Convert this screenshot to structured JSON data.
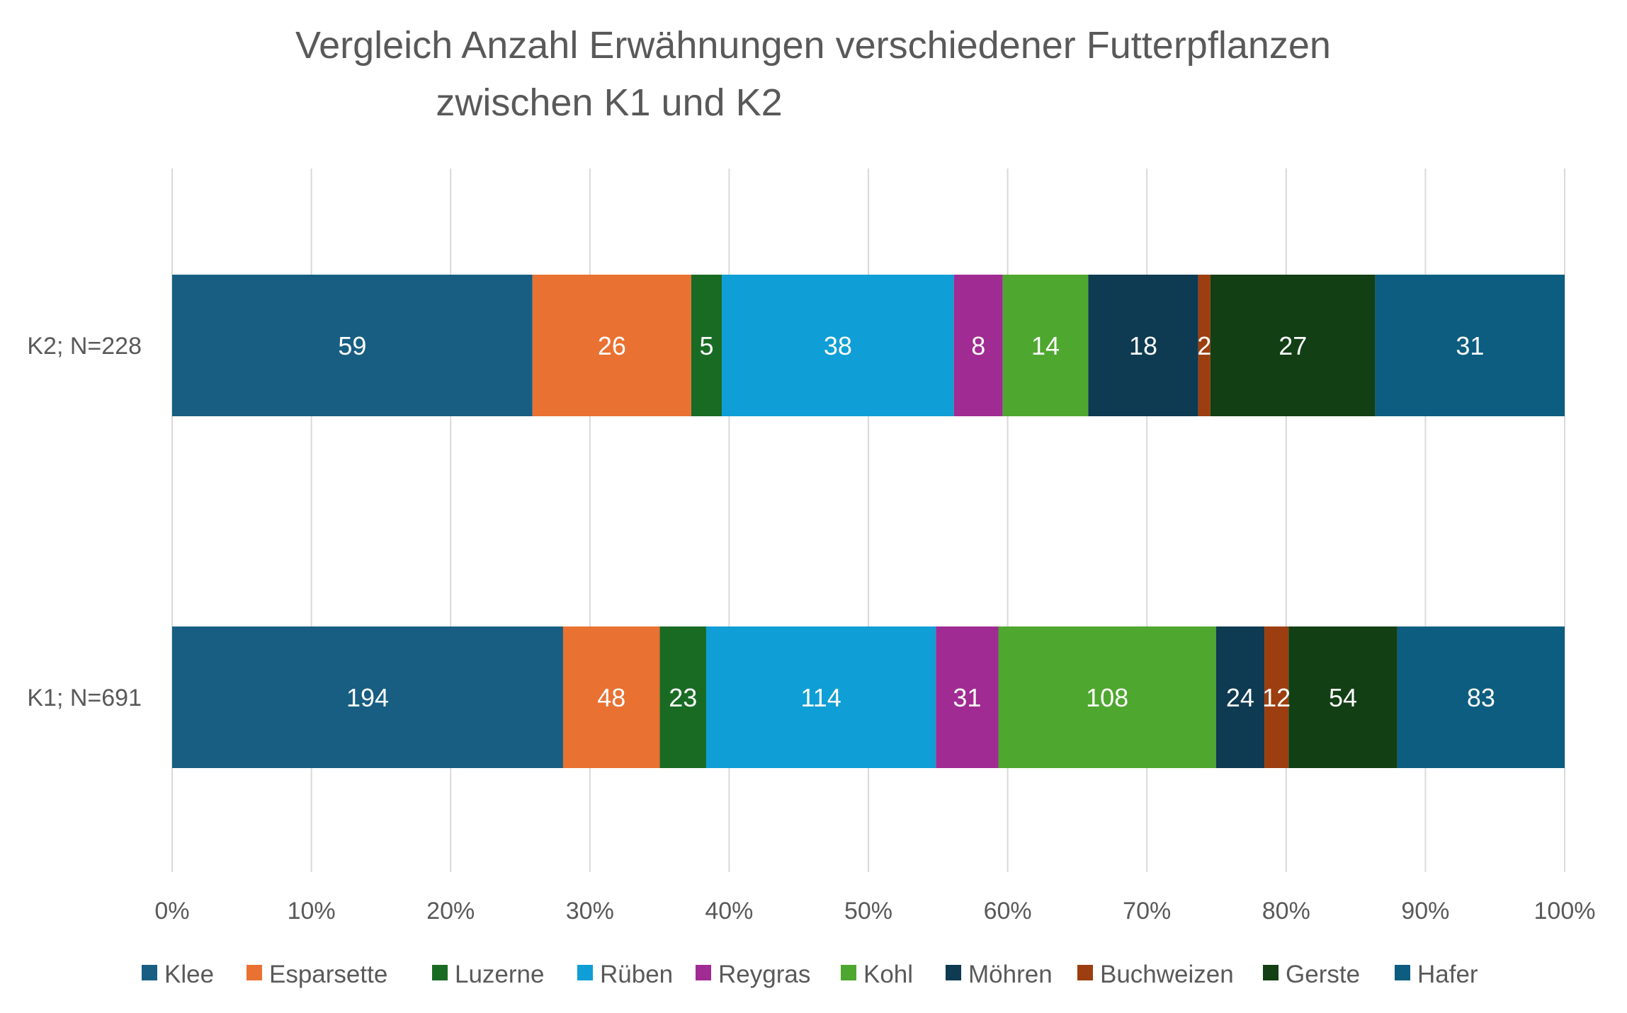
{
  "chart_data": {
    "type": "bar",
    "orientation": "horizontal",
    "stacking": "percent",
    "title_lines": [
      "Vergleich Anzahl Erwähnungen verschiedener Futterpflanzen",
      "zwischen K1 und K2"
    ],
    "categories": [
      "K2; N=228",
      "K1; N=691"
    ],
    "x_ticks": [
      "0%",
      "10%",
      "20%",
      "30%",
      "40%",
      "50%",
      "60%",
      "70%",
      "80%",
      "90%",
      "100%"
    ],
    "xlim": [
      0,
      100
    ],
    "grid": true,
    "legend_position": "bottom",
    "series": [
      {
        "name": "Klee",
        "color": "#175e82",
        "values": [
          59,
          194
        ]
      },
      {
        "name": "Esparsette",
        "color": "#e97132",
        "values": [
          26,
          48
        ]
      },
      {
        "name": "Luzerne",
        "color": "#196b24",
        "values": [
          5,
          23
        ]
      },
      {
        "name": "Rüben",
        "color": "#0f9ed5",
        "values": [
          38,
          114
        ]
      },
      {
        "name": "Reygras",
        "color": "#a02b93",
        "values": [
          8,
          31
        ]
      },
      {
        "name": "Kohl",
        "color": "#4ea72e",
        "values": [
          14,
          108
        ]
      },
      {
        "name": "Möhren",
        "color": "#0e3a52",
        "values": [
          18,
          24
        ]
      },
      {
        "name": "Buchweizen",
        "color": "#9c3e0f",
        "values": [
          2,
          12
        ]
      },
      {
        "name": "Gerste",
        "color": "#123f14",
        "values": [
          27,
          54
        ]
      },
      {
        "name": "Hafer",
        "color": "#0c5d80",
        "values": [
          31,
          83
        ]
      }
    ]
  }
}
